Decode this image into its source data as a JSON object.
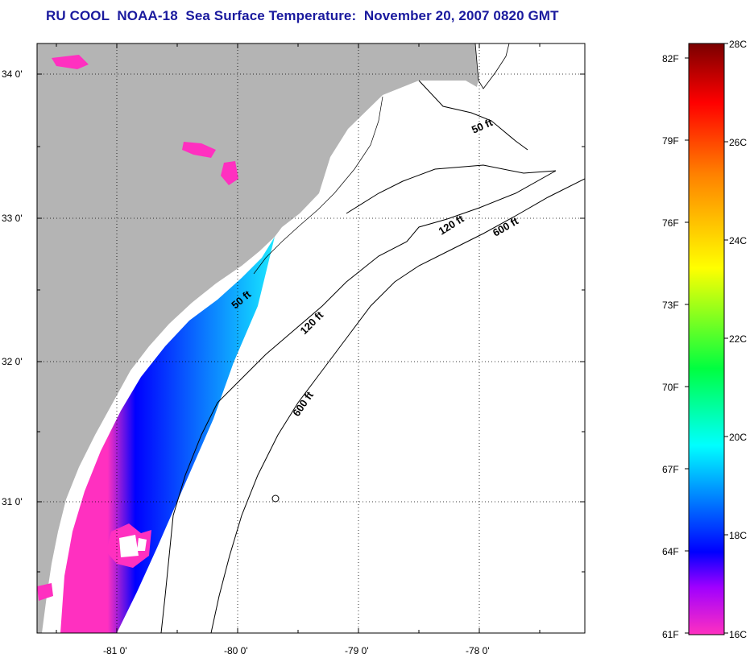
{
  "title": "RU COOL  NOAA-18  Sea Surface Temperature:  November 20, 2007 0820 GMT",
  "map": {
    "lat_labels": [
      "34 0'",
      "33 0'",
      "32 0'",
      "31 0'"
    ],
    "lon_labels": [
      "-81 0'",
      "-80 0'",
      "-79 0'",
      "-78 0'"
    ],
    "contour_labels": [
      {
        "text": "50 ft"
      },
      {
        "text": "120 ft"
      },
      {
        "text": "600 ft"
      },
      {
        "text": "50 ft"
      },
      {
        "text": "120 ft"
      },
      {
        "text": "600 ft"
      }
    ],
    "colors": {
      "land": "#b4b4b4",
      "ocean": "#ffffff",
      "contour": "#000000"
    }
  },
  "colorbar": {
    "fahrenheit_labels": [
      "82F",
      "79F",
      "76F",
      "73F",
      "70F",
      "67F",
      "64F",
      "61F"
    ],
    "celsius_labels": [
      "28C",
      "26C",
      "24C",
      "22C",
      "20C",
      "18C",
      "16C"
    ],
    "gradient_colors": [
      "#7a0000",
      "#ff0000",
      "#ff8000",
      "#ffff00",
      "#00ff40",
      "#00ffff",
      "#0080ff",
      "#0000ff",
      "#a000ff",
      "#ff30c0"
    ]
  }
}
